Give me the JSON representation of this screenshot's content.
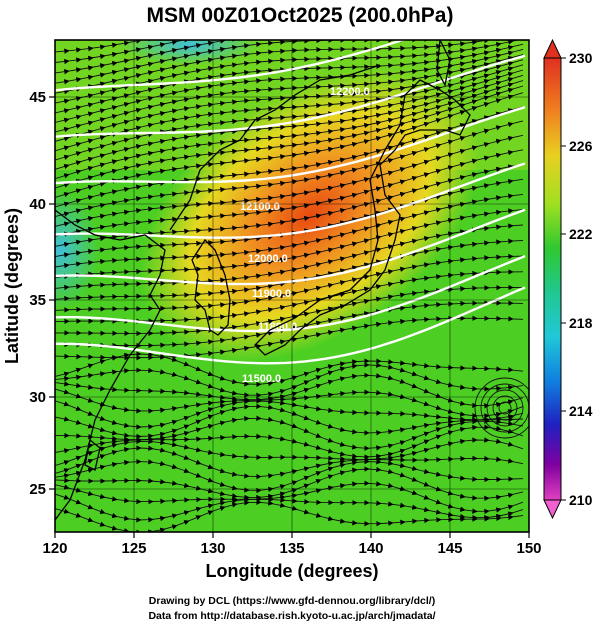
{
  "title": "MSM 00Z01Oct2025 (200.0hPa)",
  "axes": {
    "xlabel": "Longitude (degrees)",
    "ylabel": "Latitude  (degrees)",
    "x_ticks": [
      "120",
      "125",
      "130",
      "135",
      "140",
      "145",
      "150"
    ],
    "y_ticks": [
      "25",
      "30",
      "35",
      "40",
      "45"
    ],
    "xlim": [
      120,
      150
    ],
    "ylim": [
      22.4,
      47.6
    ]
  },
  "colorbar": {
    "ticks": [
      "230",
      "226",
      "222",
      "218",
      "214",
      "210"
    ],
    "range": [
      210,
      230
    ],
    "colors": [
      "#e040c0",
      "#8000a0",
      "#2030c0",
      "#1090e0",
      "#20d0d0",
      "#20c060",
      "#40d020",
      "#a0e020",
      "#e8e020",
      "#f0a020",
      "#e85010",
      "#e03020"
    ]
  },
  "contours": {
    "labels": [
      "11500.0",
      "11800.0",
      "11900.0",
      "12000.0",
      "12100.0",
      "12200.0"
    ],
    "color": "#ffffff"
  },
  "map": {
    "field": "temperature (K)",
    "overlay": "streamlines",
    "coastline_color": "#000000"
  },
  "credits": {
    "line1": "Drawing by DCL (https://www.gfd-dennou.org/library/dcl/)",
    "line2": "Data from http://database.rish.kyoto-u.ac.jp/arch/jmadata/"
  }
}
